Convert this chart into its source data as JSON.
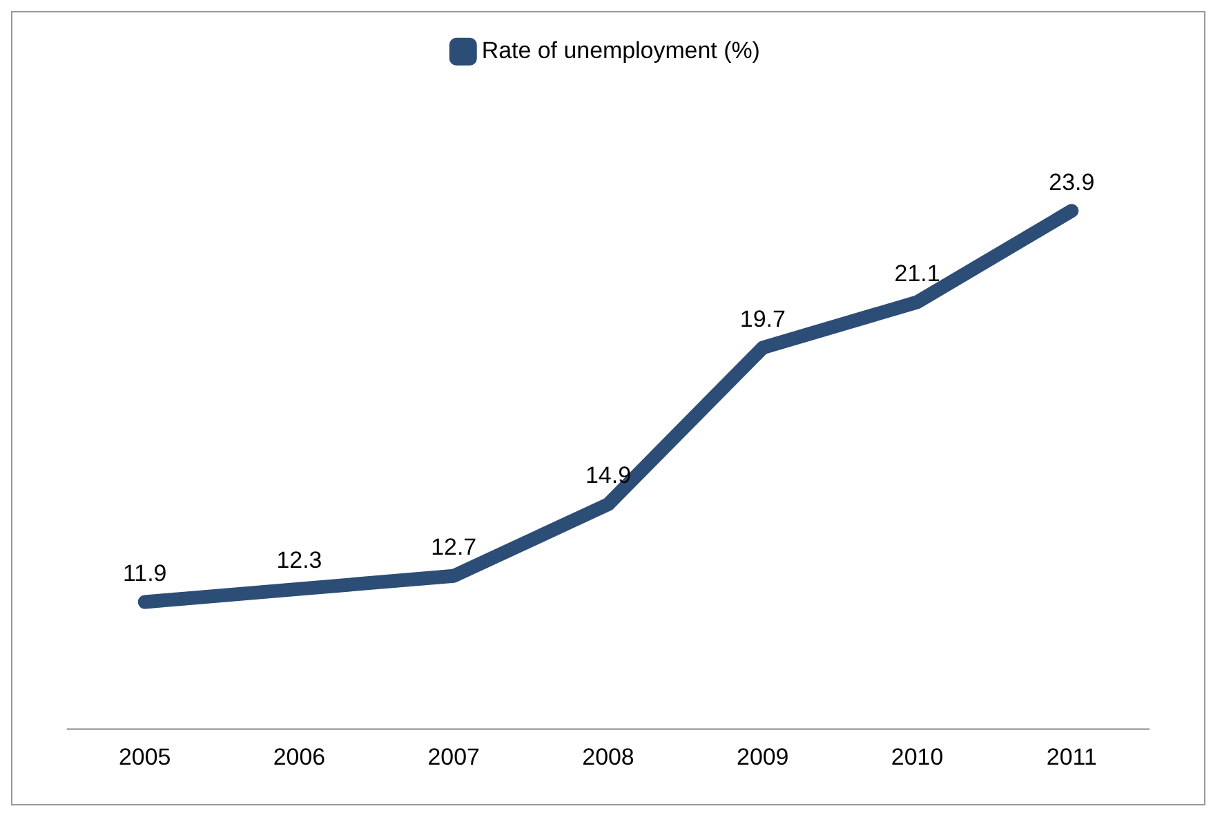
{
  "chart_data": {
    "type": "line",
    "categories": [
      "2005",
      "2006",
      "2007",
      "2008",
      "2009",
      "2010",
      "2011"
    ],
    "series": [
      {
        "name": "Rate of unemployment (%)",
        "color": "#2c4d75",
        "values": [
          11.9,
          12.3,
          12.7,
          14.9,
          19.7,
          21.1,
          23.9
        ]
      }
    ],
    "data_labels": true,
    "legend": "top",
    "grid": false,
    "marker": "none",
    "line_style": "solid"
  }
}
